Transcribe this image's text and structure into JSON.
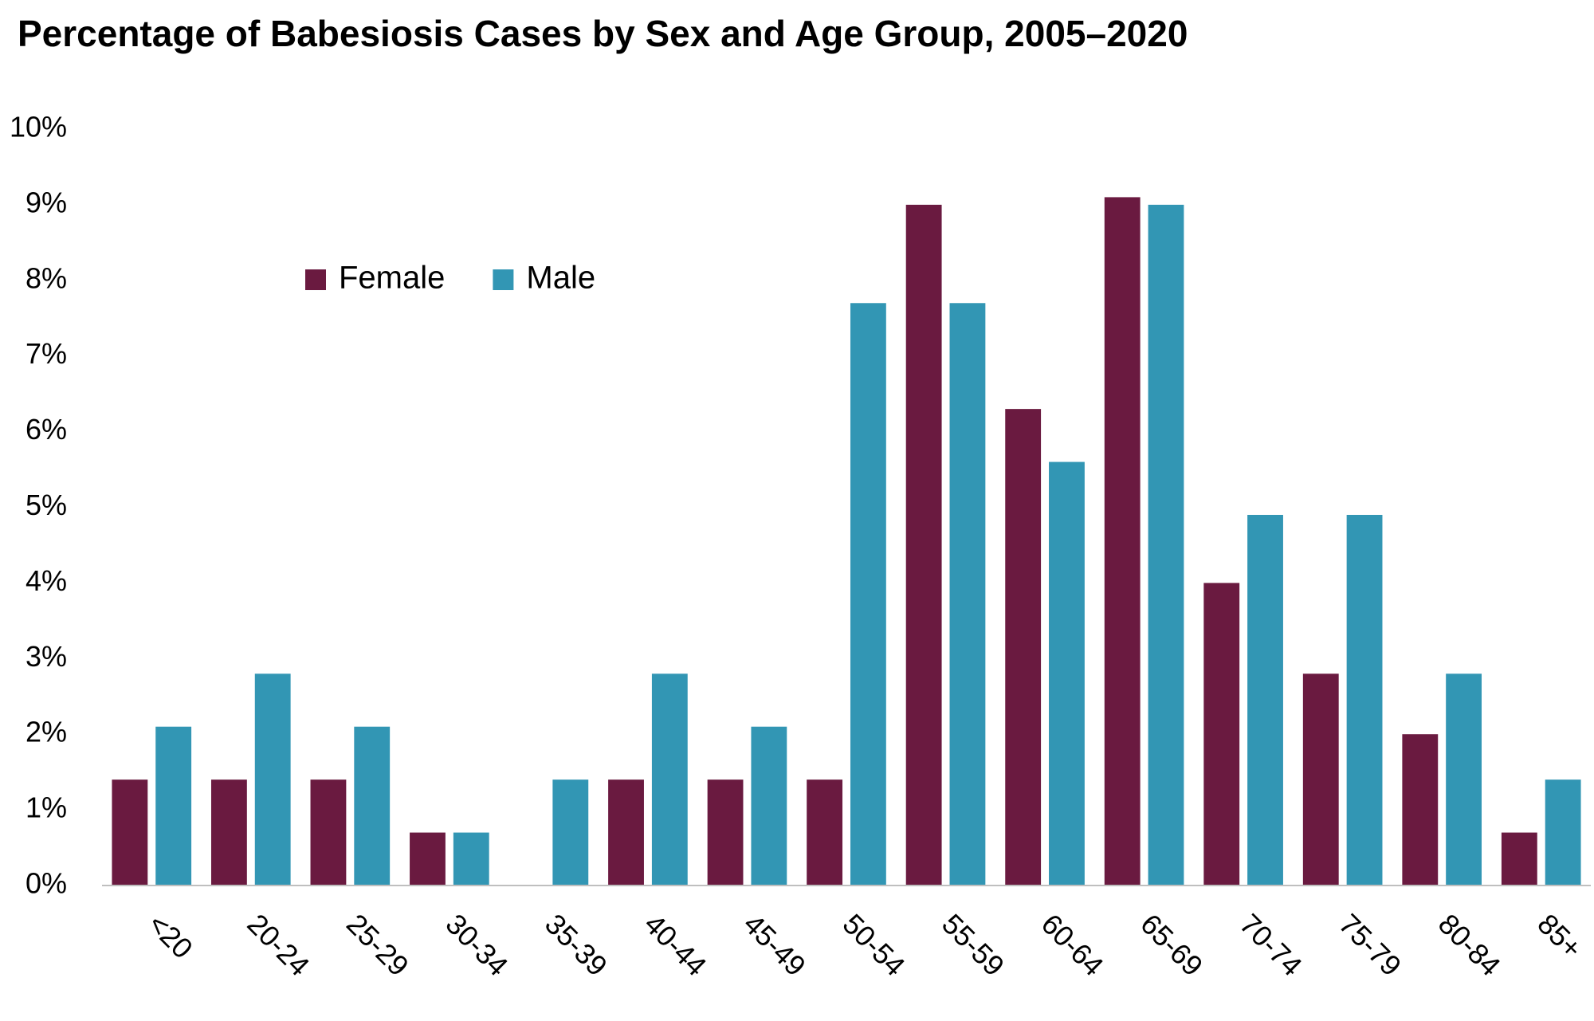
{
  "chart_data": {
    "type": "bar",
    "title": "Percentage of Babesiosis Cases by Sex and Age Group, 2005–2020",
    "categories": [
      "<20",
      "20-24",
      "25-29",
      "30-34",
      "35-39",
      "40-44",
      "45-49",
      "50-54",
      "55-59",
      "60-64",
      "65-69",
      "70-74",
      "75-79",
      "80-84",
      "85+"
    ],
    "series": [
      {
        "name": "Female",
        "color": "#6a1a40",
        "values": [
          1.4,
          1.4,
          1.4,
          0.7,
          0,
          1.4,
          1.4,
          1.4,
          9.0,
          6.3,
          9.1,
          4.0,
          2.8,
          2.0,
          0.7
        ]
      },
      {
        "name": "Male",
        "color": "#3296b4",
        "values": [
          2.1,
          2.8,
          2.1,
          0.7,
          1.4,
          2.8,
          2.1,
          7.7,
          7.7,
          5.6,
          9.0,
          4.9,
          4.9,
          2.8,
          1.4
        ]
      }
    ],
    "ylim": [
      0,
      10
    ],
    "yticks": [
      {
        "value": 0,
        "label": "0%"
      },
      {
        "value": 1,
        "label": "1%"
      },
      {
        "value": 2,
        "label": "2%"
      },
      {
        "value": 3,
        "label": "3%"
      },
      {
        "value": 4,
        "label": "4%"
      },
      {
        "value": 5,
        "label": "5%"
      },
      {
        "value": 6,
        "label": "6%"
      },
      {
        "value": 7,
        "label": "7%"
      },
      {
        "value": 8,
        "label": "8%"
      },
      {
        "value": 9,
        "label": "9%"
      },
      {
        "value": 10,
        "label": "10%"
      }
    ],
    "grid": false,
    "legend": "top-left"
  }
}
